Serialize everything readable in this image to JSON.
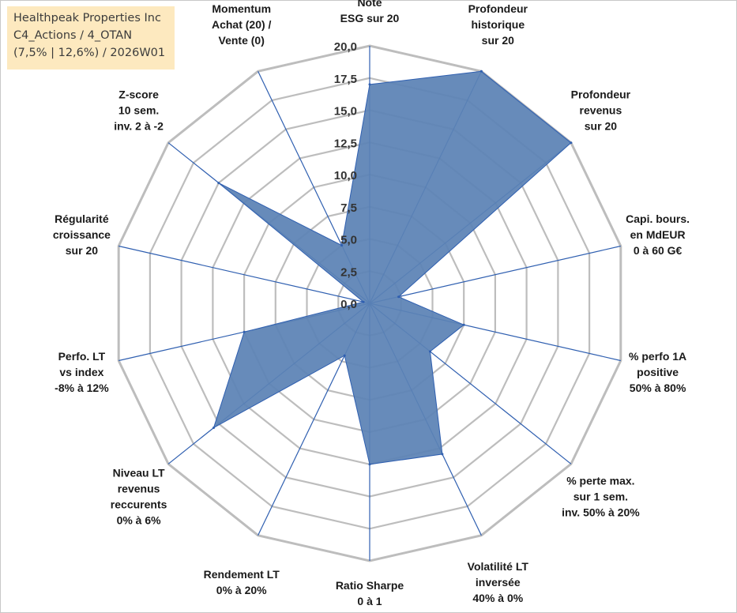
{
  "title_box": {
    "line1": "Healthpeak Properties Inc",
    "line2": "C4_Actions / 4_OTAN",
    "line3": "(7,5% | 12,6%) / 2026W01"
  },
  "chart_data": {
    "type": "radar",
    "title": "Healthpeak Properties Inc",
    "rmin": 0,
    "rmax": 20,
    "tick_step": 2.5,
    "tick_labels": [
      "0,0",
      "2,5",
      "5,0",
      "7,5",
      "10,0",
      "12,5",
      "15,0",
      "17,5",
      "20,0"
    ],
    "fill_color": "#5b82b5",
    "axis_color": "#2f5fb0",
    "grid_color": "#bdbdbd",
    "axes": [
      {
        "label": [
          "Note",
          "ESG sur 20"
        ],
        "value": 17.0
      },
      {
        "label": [
          "Profondeur",
          "historique",
          "sur 20"
        ],
        "value": 20.0
      },
      {
        "label": [
          "Profondeur",
          "revenus",
          "sur 20"
        ],
        "value": 20.0
      },
      {
        "label": [
          "Capi. bours.",
          "en MdEUR",
          "0 à 60 G€"
        ],
        "value": 2.3
      },
      {
        "label": [
          "% perfo 1A",
          "positive",
          "50% à 80%"
        ],
        "value": 7.5
      },
      {
        "label": [
          "% perte max.",
          "sur 1 sem.",
          "inv. 50% à 20%"
        ],
        "value": 6.0
      },
      {
        "label": [
          "Volatilité LT",
          "inversée",
          "40% à 0%"
        ],
        "value": 13.0
      },
      {
        "label": [
          "Ratio Sharpe",
          "0 à 1"
        ],
        "value": 12.5
      },
      {
        "label": [
          "Rendement LT",
          "0% à 20%"
        ],
        "value": 4.5
      },
      {
        "label": [
          "Niveau LT",
          "revenus",
          "reccurents",
          "0% à 6%"
        ],
        "value": 15.5
      },
      {
        "label": [
          "Perfo. LT",
          "vs index",
          "-8% à 12%"
        ],
        "value": 10.0
      },
      {
        "label": [
          "Régularité",
          "croissance",
          "sur 20"
        ],
        "value": 0.5
      },
      {
        "label": [
          "Z-score",
          "10 sem.",
          "inv. 2 à -2"
        ],
        "value": 15.0
      },
      {
        "label": [
          "Momentum",
          "Achat (20) /",
          "Vente (0)"
        ],
        "value": 5.0
      }
    ]
  }
}
